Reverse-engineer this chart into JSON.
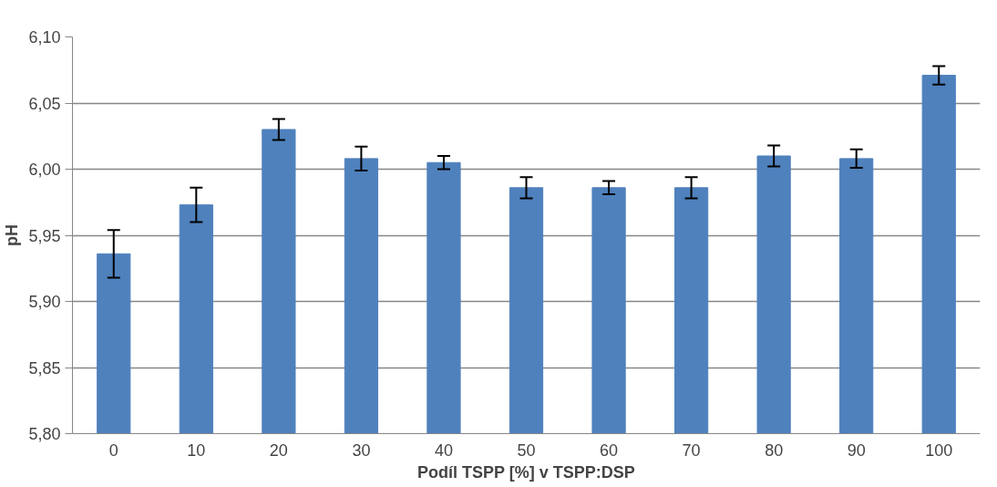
{
  "chart_data": {
    "type": "bar",
    "xlabel": "Podíl TSPP [%] v TSPP:DSP",
    "ylabel": "pH",
    "categories": [
      "0",
      "10",
      "20",
      "30",
      "40",
      "50",
      "60",
      "70",
      "80",
      "90",
      "100"
    ],
    "values": [
      5.936,
      5.973,
      6.03,
      6.008,
      6.005,
      5.986,
      5.986,
      5.986,
      6.01,
      6.008,
      6.071
    ],
    "errors": [
      0.018,
      0.013,
      0.008,
      0.009,
      0.005,
      0.008,
      0.005,
      0.008,
      0.008,
      0.007,
      0.007
    ],
    "color": "#4f81bd",
    "ylim": [
      5.8,
      6.1
    ],
    "yticks": [
      {
        "value": 5.8,
        "label": "5,80"
      },
      {
        "value": 5.85,
        "label": "5,85"
      },
      {
        "value": 5.9,
        "label": "5,90"
      },
      {
        "value": 5.95,
        "label": "5,95"
      },
      {
        "value": 6.0,
        "label": "6,00"
      },
      {
        "value": 6.05,
        "label": "6,05"
      },
      {
        "value": 6.1,
        "label": "6,10"
      }
    ],
    "grid": "y"
  }
}
